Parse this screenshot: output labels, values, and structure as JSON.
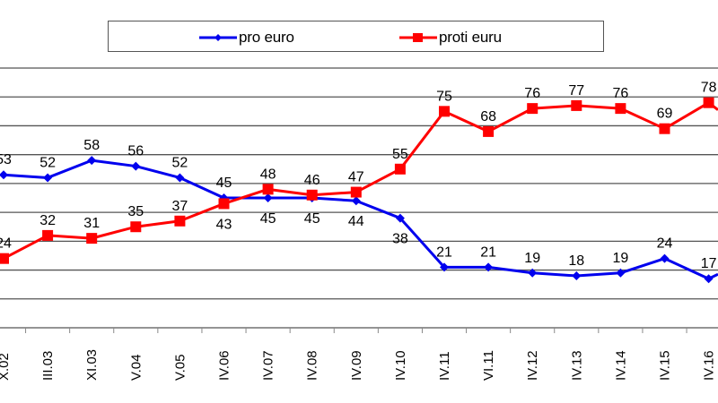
{
  "legend": {
    "items": [
      {
        "label": "pro euro",
        "color": "#0000ee",
        "marker": "diamond"
      },
      {
        "label": "proti euru",
        "color": "#ff0000",
        "marker": "square"
      }
    ]
  },
  "chart_data": {
    "type": "line",
    "title": "",
    "xlabel": "",
    "ylabel": "",
    "ylim": [
      0,
      90
    ],
    "grid": true,
    "gridline_step": 10,
    "legend_position": "top",
    "categories": [
      "X.02",
      "III.03",
      "XI.03",
      "V.04",
      "V.05",
      "IV.06",
      "IV.07",
      "IV.08",
      "IV.09",
      "IV.10",
      "IV.11",
      "VI.11",
      "IV.12",
      "IV.13",
      "IV.14",
      "IV.15",
      "IV.16"
    ],
    "series": [
      {
        "name": "pro euro",
        "color": "#0000ee",
        "marker": "diamond",
        "values": [
          53,
          52,
          58,
          56,
          52,
          45,
          45,
          45,
          44,
          38,
          21,
          21,
          19,
          18,
          19,
          24,
          17
        ],
        "label_pos": [
          "above",
          "above",
          "above",
          "above",
          "above",
          "above",
          "below",
          "below",
          "below",
          "below",
          "above",
          "above",
          "above",
          "above",
          "above",
          "above",
          "above"
        ]
      },
      {
        "name": "proti euru",
        "color": "#ff0000",
        "marker": "square",
        "values": [
          24,
          32,
          31,
          35,
          37,
          43,
          48,
          46,
          47,
          55,
          75,
          68,
          76,
          77,
          76,
          69,
          78
        ],
        "label_pos": [
          "above",
          "above",
          "above",
          "above",
          "above",
          "below",
          "above",
          "above",
          "above",
          "above",
          "above",
          "above",
          "above",
          "above",
          "above",
          "above",
          "above"
        ]
      }
    ]
  }
}
